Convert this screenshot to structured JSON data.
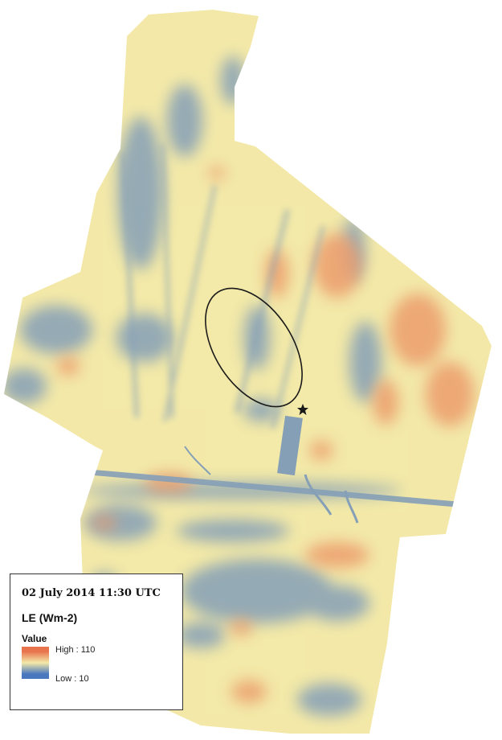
{
  "map": {
    "colors": {
      "low": "#4a78bf",
      "mid": "#f3e9a8",
      "high": "#e8744e",
      "background": "#ffffff",
      "outline": "#1a1a1a"
    },
    "marker_icon": "star-icon"
  },
  "legend": {
    "date_text": "02 July 2014 11:30 UTC",
    "variable": "LE (Wm-2)",
    "value_label": "Value",
    "high_text": "High : 110",
    "low_text": "Low : 10",
    "high_value": 110,
    "low_value": 10
  }
}
